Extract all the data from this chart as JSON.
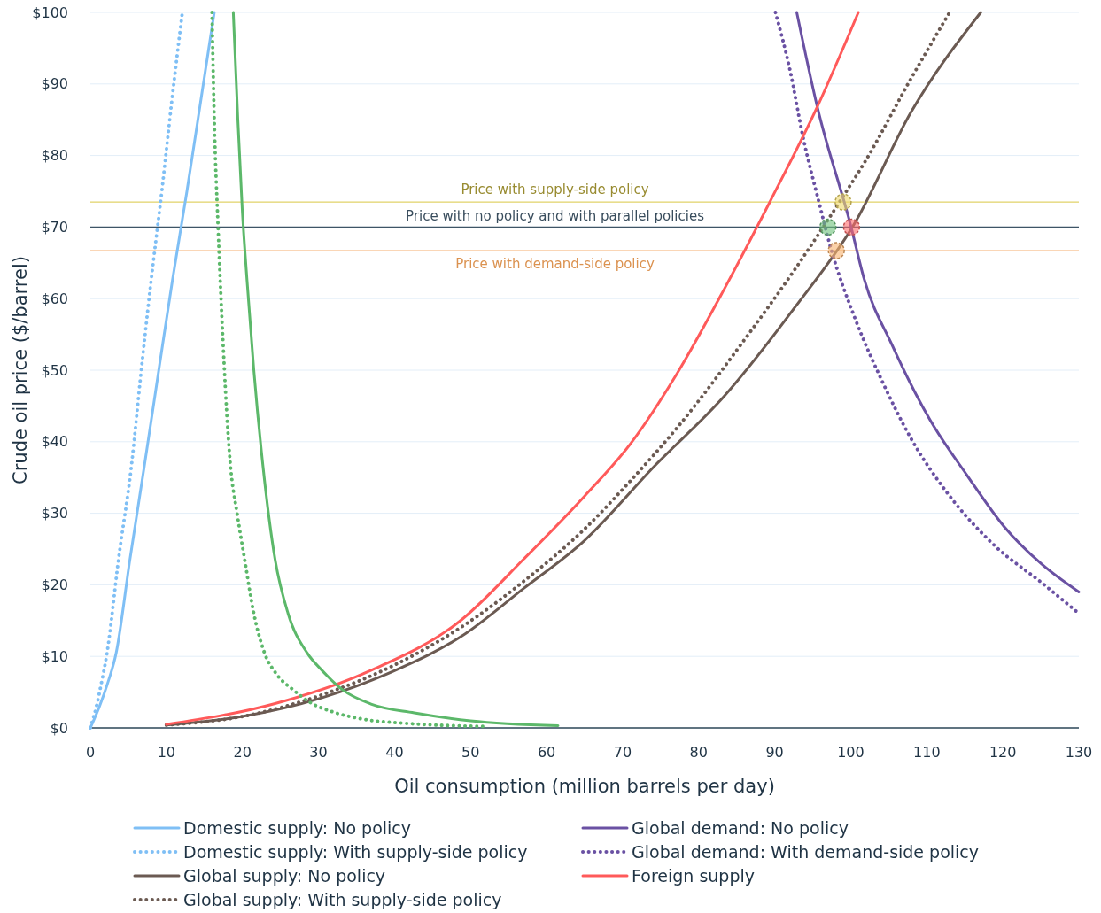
{
  "chart_data": {
    "type": "line",
    "xlabel": "Oil consumption (million barrels per day)",
    "ylabel": "Crude oil price ($/barrel)",
    "xlim": [
      0,
      130
    ],
    "xticks": [
      0,
      10,
      20,
      30,
      40,
      50,
      60,
      70,
      80,
      90,
      100,
      110,
      120,
      130
    ],
    "ylim": [
      0,
      100
    ],
    "yticks": [
      {
        "value": 0,
        "label": "$0"
      },
      {
        "value": 10,
        "label": "$10"
      },
      {
        "value": 20,
        "label": "$20"
      },
      {
        "value": 30,
        "label": "$30"
      },
      {
        "value": 40,
        "label": "$40"
      },
      {
        "value": 50,
        "label": "$50"
      },
      {
        "value": 60,
        "label": "$60"
      },
      {
        "value": 70,
        "label": "$70"
      },
      {
        "value": 80,
        "label": "$80"
      },
      {
        "value": 90,
        "label": "$90"
      },
      {
        "value": 100,
        "label": "$100"
      }
    ],
    "grid": "y",
    "legend": "bottom",
    "ref_lines": [
      {
        "axis": "y",
        "value": 73.5,
        "label": "Price with supply-side policy",
        "color": "#d9c744"
      },
      {
        "axis": "y",
        "value": 70,
        "label": "Price with no policy and with parallel policies",
        "color": "#3e5566"
      },
      {
        "axis": "y",
        "value": 66.7,
        "label": "Price with demand-side policy",
        "color": "#f4a259"
      }
    ],
    "series": [
      {
        "name": "Domestic supply: No policy",
        "color": "#7fbff5",
        "line_style": "solid",
        "x": [
          0,
          1.2,
          2.2,
          3.4,
          5.2,
          7.1,
          9,
          10.8,
          12.7,
          14.5,
          16.3
        ],
        "values": [
          0,
          3,
          6,
          10.5,
          23.5,
          36.6,
          50,
          62.6,
          75,
          87.5,
          100
        ]
      },
      {
        "name": "Domestic supply: With supply-side policy",
        "color": "#7fbff5",
        "line_style": "dotted",
        "x": [
          0,
          0.8,
          1.4,
          2.2,
          3.7,
          5.4,
          6.7,
          8,
          9.4,
          10.7,
          12.1
        ],
        "values": [
          0,
          3,
          6,
          10.5,
          23.5,
          36.6,
          50,
          62.6,
          75,
          87.5,
          100
        ]
      },
      {
        "name": "Global supply: No policy",
        "color": "#6b5a52",
        "line_style": "solid",
        "x": [
          10,
          20,
          30.4,
          40,
          48.8,
          57,
          65,
          74.2,
          83.4,
          92.6,
          100.5,
          107.9,
          117.1
        ],
        "values": [
          0.4,
          1.6,
          4.2,
          8,
          12.8,
          19.5,
          26.2,
          36.6,
          46.4,
          58.7,
          70.5,
          86,
          100
        ]
      },
      {
        "name": "Global supply: With supply-side policy",
        "color": "#6b5a52",
        "line_style": "dotted",
        "x": [
          10,
          20,
          30.4,
          40,
          48.8,
          57,
          65,
          71,
          77.2,
          86.4,
          92.6,
          98.7,
          101.8,
          107.9,
          113
        ],
        "values": [
          0.4,
          1.6,
          4.6,
          8.8,
          14.1,
          20.5,
          27.8,
          34.5,
          42,
          54.8,
          64,
          73.8,
          79,
          90.7,
          100
        ]
      },
      {
        "name": "Global demand: No policy",
        "color": "#6a51a3",
        "line_style": "solid",
        "x": [
          92.9,
          95.6,
          100,
          101.8,
          105.4,
          110.4,
          115.3,
          120.2,
          125.1,
          130
        ],
        "values": [
          100,
          86.8,
          70.2,
          62.6,
          53.6,
          43.1,
          35.3,
          28.1,
          22.9,
          19
        ]
      },
      {
        "name": "Global demand: With demand-side policy",
        "color": "#6a51a3",
        "line_style": "dotted",
        "x": [
          90.1,
          92,
          93.8,
          95.6,
          97.5,
          100.5,
          104.2,
          107.9,
          112.8,
          118.9,
          125.1,
          130
        ],
        "values": [
          100,
          92,
          82.2,
          74.4,
          66.6,
          57.4,
          48.3,
          40.5,
          32.7,
          25.5,
          20.3,
          16
        ]
      },
      {
        "name": "Foreign supply",
        "color": "#ff5a5a",
        "line_style": "solid",
        "x": [
          10,
          24.3,
          36.6,
          48.8,
          57,
          65,
          71.1,
          77.2,
          83.4,
          89.5,
          95.6,
          101
        ],
        "values": [
          0.5,
          3.4,
          7.9,
          15.1,
          23.6,
          32.4,
          39.8,
          49.6,
          61.4,
          73.8,
          86.8,
          100
        ]
      },
      {
        "color": "#5cb86a",
        "line_style": "solid",
        "x": [
          18.8,
          19.4,
          20,
          20.6,
          21.5,
          22.7,
          24.3,
          26,
          28.5,
          30.5,
          33.2,
          37,
          42.6,
          50,
          61.5
        ],
        "values": [
          100,
          85,
          72,
          62.6,
          50,
          36.6,
          23.5,
          16,
          10.5,
          8,
          5.3,
          3.3,
          2.1,
          1,
          0.3
        ]
      },
      {
        "color": "#5cb86a",
        "line_style": "dotted",
        "x": [
          16,
          16.3,
          16.8,
          17.4,
          18.4,
          19.3,
          20.3,
          21.5,
          22.9,
          24.5,
          26.7,
          29,
          32,
          36,
          42,
          52
        ],
        "values": [
          100,
          85,
          70,
          55,
          37,
          30,
          23.5,
          16,
          10.5,
          7.5,
          5.3,
          3.5,
          2.2,
          1.2,
          0.6,
          0.2
        ]
      },
      {
        "type": "scatter",
        "marker": "circle",
        "x": [
          99,
          97,
          100.1,
          98.1
        ],
        "values": [
          73.5,
          70,
          70,
          66.7
        ],
        "colors": [
          "#efd96a",
          "#6cc27a",
          "#ff6b6b",
          "#f9b26e"
        ]
      }
    ]
  }
}
